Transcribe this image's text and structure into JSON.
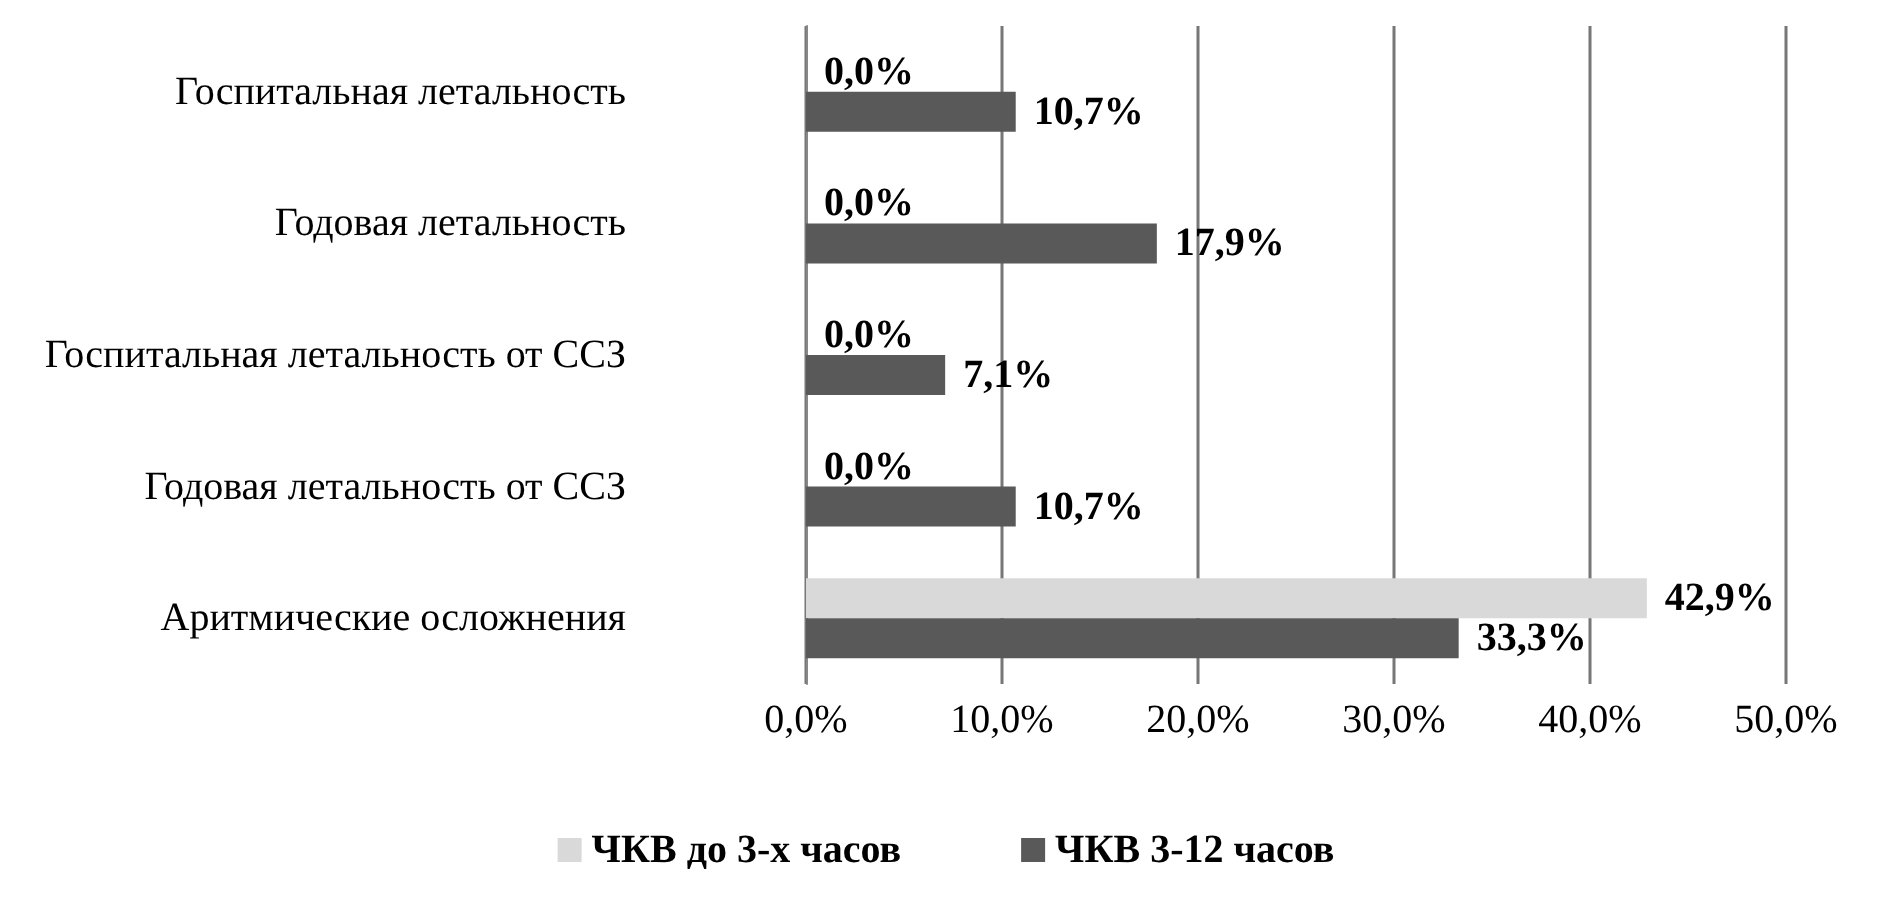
{
  "chart_data": {
    "type": "bar",
    "orientation": "horizontal",
    "categories": [
      "Госпитальная летальность",
      "Годовая летальность",
      "Госпитальная летальность от ССЗ",
      "Годовая летальность от ССЗ",
      "Аритмические осложнения"
    ],
    "series": [
      {
        "name": "ЧКВ до 3-х часов",
        "color": "#d9d9d9",
        "values": [
          0,
          0,
          0,
          0,
          42.9
        ],
        "value_labels": [
          "0,0%",
          "0,0%",
          "0,0%",
          "0,0%",
          "42,9%"
        ]
      },
      {
        "name": "ЧКВ 3-12 часов",
        "color": "#595959",
        "values": [
          10.7,
          17.9,
          7.1,
          10.7,
          33.3
        ],
        "value_labels": [
          "10,7%",
          "17,9%",
          "7,1%",
          "10,7%",
          "33,3%"
        ]
      }
    ],
    "xlim": [
      0,
      50
    ],
    "xticks": [
      {
        "value": 0,
        "label": "0,0%"
      },
      {
        "value": 10,
        "label": "10,0%"
      },
      {
        "value": 20,
        "label": "20,0%"
      },
      {
        "value": 30,
        "label": "30,0%"
      },
      {
        "value": 40,
        "label": "40,0%"
      },
      {
        "value": 50,
        "label": "50,0%"
      }
    ],
    "grid": "x",
    "legend": "bottom"
  }
}
